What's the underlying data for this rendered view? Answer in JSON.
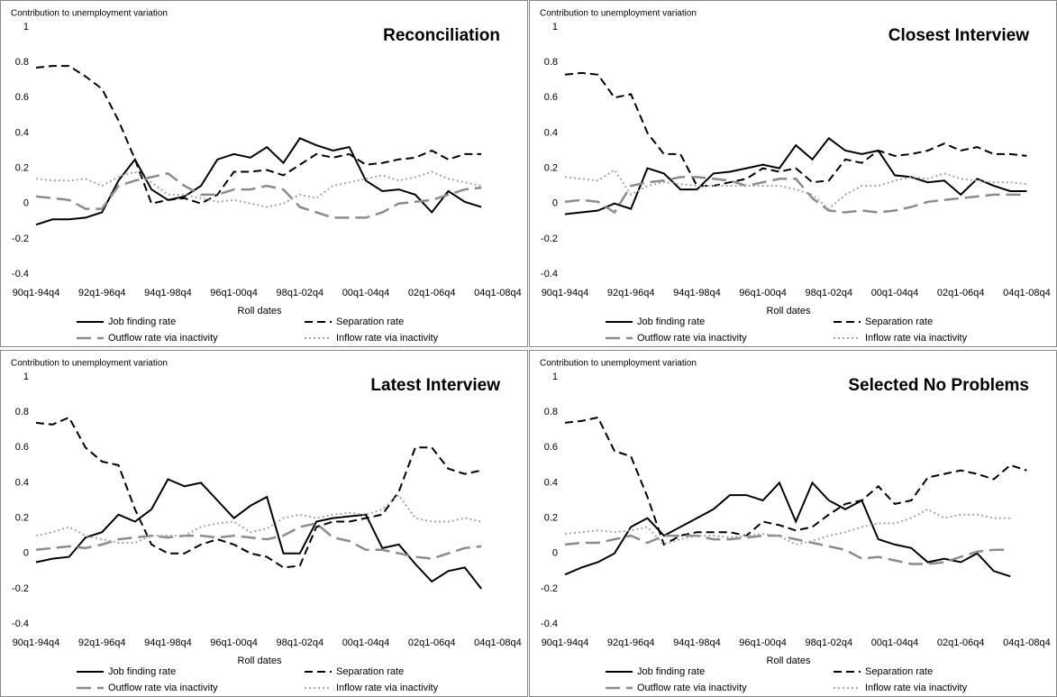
{
  "chart_data": [
    {
      "type": "line",
      "title": "Reconciliation",
      "y_axis_title": "Contribution to unemployment variation",
      "x_axis_title": "Roll dates",
      "categories": [
        "90q1-94q4",
        null,
        null,
        null,
        "92q1-96q4",
        null,
        null,
        null,
        "94q1-98q4",
        null,
        null,
        null,
        "96q1-00q4",
        null,
        null,
        null,
        "98q1-02q4",
        null,
        null,
        null,
        "00q1-04q4",
        null,
        null,
        null,
        "02q1-06q4",
        null,
        null,
        null,
        "04q1-08q4"
      ],
      "ylim": [
        -0.4,
        1
      ],
      "yticks": [
        -0.4,
        -0.2,
        0,
        0.2,
        0.4,
        0.6,
        0.8,
        1
      ],
      "series": [
        {
          "name": "Job finding rate",
          "color": "#000000",
          "dash": "solid",
          "values": [
            -0.12,
            -0.09,
            -0.09,
            -0.08,
            -0.05,
            0.13,
            0.25,
            0.08,
            0.02,
            0.04,
            0.1,
            0.25,
            0.28,
            0.26,
            0.32,
            0.23,
            0.37,
            0.33,
            0.3,
            0.32,
            0.13,
            0.07,
            0.08,
            0.05,
            -0.05,
            0.07,
            0.01,
            -0.02,
            null
          ]
        },
        {
          "name": "Separation rate",
          "color": "#000000",
          "dash": "dashed",
          "values": [
            0.77,
            0.78,
            0.78,
            0.72,
            0.65,
            0.47,
            0.25,
            0.0,
            0.02,
            0.03,
            0.0,
            0.05,
            0.18,
            0.18,
            0.19,
            0.16,
            0.22,
            0.28,
            0.26,
            0.28,
            0.22,
            0.23,
            0.25,
            0.26,
            0.3,
            0.25,
            0.28,
            0.28,
            null
          ]
        },
        {
          "name": "Outflow rate via inactivity",
          "color": "#8c8c8c",
          "dash": "long-dashed",
          "values": [
            0.04,
            0.03,
            0.02,
            -0.03,
            -0.03,
            0.1,
            0.13,
            0.15,
            0.17,
            0.1,
            0.05,
            0.05,
            0.08,
            0.08,
            0.1,
            0.08,
            -0.02,
            -0.05,
            -0.08,
            -0.08,
            -0.08,
            -0.05,
            0.0,
            0.01,
            0.02,
            0.05,
            0.08,
            0.09,
            null
          ]
        },
        {
          "name": "Inflow rate via inactivity",
          "color": "#a6a6a6",
          "dash": "dotted",
          "values": [
            0.14,
            0.13,
            0.13,
            0.14,
            0.1,
            0.15,
            0.18,
            0.12,
            0.05,
            0.05,
            0.03,
            0.01,
            0.02,
            0.0,
            -0.02,
            0.0,
            0.05,
            0.03,
            0.1,
            0.12,
            0.14,
            0.16,
            0.13,
            0.15,
            0.18,
            0.14,
            0.12,
            0.1,
            null
          ]
        }
      ]
    },
    {
      "type": "line",
      "title": "Closest Interview",
      "y_axis_title": "Contribution to unemployment variation",
      "x_axis_title": "Roll dates",
      "categories": [
        "90q1-94q4",
        null,
        null,
        null,
        "92q1-96q4",
        null,
        null,
        null,
        "94q1-98q4",
        null,
        null,
        null,
        "96q1-00q4",
        null,
        null,
        null,
        "98q1-02q4",
        null,
        null,
        null,
        "00q1-04q4",
        null,
        null,
        null,
        "02q1-06q4",
        null,
        null,
        null,
        "04q1-08q4"
      ],
      "ylim": [
        -0.4,
        1
      ],
      "yticks": [
        -0.4,
        -0.2,
        0,
        0.2,
        0.4,
        0.6,
        0.8,
        1
      ],
      "series": [
        {
          "name": "Job finding rate",
          "color": "#000000",
          "dash": "solid",
          "values": [
            -0.06,
            -0.05,
            -0.04,
            0.0,
            -0.03,
            0.2,
            0.17,
            0.08,
            0.08,
            0.17,
            0.18,
            0.2,
            0.22,
            0.2,
            0.33,
            0.25,
            0.37,
            0.3,
            0.28,
            0.3,
            0.16,
            0.15,
            0.12,
            0.13,
            0.05,
            0.14,
            0.1,
            0.07,
            0.07
          ]
        },
        {
          "name": "Separation rate",
          "color": "#000000",
          "dash": "dashed",
          "values": [
            0.73,
            0.74,
            0.73,
            0.6,
            0.62,
            0.4,
            0.28,
            0.28,
            0.1,
            0.1,
            0.12,
            0.14,
            0.2,
            0.18,
            0.2,
            0.12,
            0.13,
            0.25,
            0.23,
            0.3,
            0.27,
            0.28,
            0.3,
            0.34,
            0.3,
            0.32,
            0.28,
            0.28,
            0.27
          ]
        },
        {
          "name": "Outflow rate via inactivity",
          "color": "#8c8c8c",
          "dash": "long-dashed",
          "values": [
            0.01,
            0.02,
            0.01,
            -0.05,
            0.1,
            0.12,
            0.13,
            0.15,
            0.15,
            0.14,
            0.13,
            0.1,
            0.12,
            0.14,
            0.14,
            0.03,
            -0.04,
            -0.05,
            -0.04,
            -0.05,
            -0.04,
            -0.02,
            0.01,
            0.02,
            0.03,
            0.04,
            0.05,
            0.05,
            0.05
          ]
        },
        {
          "name": "Inflow rate via inactivity",
          "color": "#a6a6a6",
          "dash": "dotted",
          "values": [
            0.15,
            0.14,
            0.13,
            0.19,
            0.05,
            0.1,
            0.12,
            0.11,
            0.1,
            0.1,
            0.1,
            0.1,
            0.1,
            0.1,
            0.08,
            0.05,
            -0.03,
            0.05,
            0.1,
            0.1,
            0.13,
            0.15,
            0.14,
            0.17,
            0.14,
            0.13,
            0.12,
            0.12,
            0.11
          ]
        }
      ]
    },
    {
      "type": "line",
      "title": "Latest Interview",
      "y_axis_title": "Contribution to unemployment variation",
      "x_axis_title": "Roll dates",
      "categories": [
        "90q1-94q4",
        null,
        null,
        null,
        "92q1-96q4",
        null,
        null,
        null,
        "94q1-98q4",
        null,
        null,
        null,
        "96q1-00q4",
        null,
        null,
        null,
        "98q1-02q4",
        null,
        null,
        null,
        "00q1-04q4",
        null,
        null,
        null,
        "02q1-06q4",
        null,
        null,
        null,
        "04q1-08q4"
      ],
      "ylim": [
        -0.4,
        1
      ],
      "yticks": [
        -0.4,
        -0.2,
        0,
        0.2,
        0.4,
        0.6,
        0.8,
        1
      ],
      "series": [
        {
          "name": "Job finding rate",
          "color": "#000000",
          "dash": "solid",
          "values": [
            -0.05,
            -0.03,
            -0.02,
            0.09,
            0.12,
            0.22,
            0.18,
            0.25,
            0.42,
            0.38,
            0.4,
            0.3,
            0.2,
            0.27,
            0.32,
            0.0,
            0.0,
            0.18,
            0.2,
            0.21,
            0.22,
            0.03,
            0.05,
            -0.06,
            -0.16,
            -0.1,
            -0.08,
            -0.2,
            null
          ]
        },
        {
          "name": "Separation rate",
          "color": "#000000",
          "dash": "dashed",
          "values": [
            0.74,
            0.73,
            0.77,
            0.6,
            0.52,
            0.5,
            0.25,
            0.05,
            0.0,
            0.0,
            0.05,
            0.08,
            0.05,
            0.0,
            -0.02,
            -0.08,
            -0.07,
            0.15,
            0.18,
            0.18,
            0.2,
            0.22,
            0.35,
            0.6,
            0.6,
            0.48,
            0.45,
            0.47,
            null
          ]
        },
        {
          "name": "Outflow rate via inactivity",
          "color": "#8c8c8c",
          "dash": "long-dashed",
          "values": [
            0.02,
            0.03,
            0.04,
            0.03,
            0.05,
            0.08,
            0.09,
            0.1,
            0.09,
            0.1,
            0.1,
            0.09,
            0.1,
            0.09,
            0.08,
            0.1,
            0.15,
            0.17,
            0.09,
            0.07,
            0.02,
            0.02,
            0.0,
            -0.02,
            -0.03,
            0.0,
            0.03,
            0.04,
            null
          ]
        },
        {
          "name": "Inflow rate via inactivity",
          "color": "#a6a6a6",
          "dash": "dotted",
          "values": [
            0.1,
            0.12,
            0.15,
            0.1,
            0.08,
            0.06,
            0.06,
            0.1,
            0.1,
            0.1,
            0.15,
            0.17,
            0.18,
            0.12,
            0.14,
            0.2,
            0.22,
            0.2,
            0.22,
            0.23,
            0.22,
            0.25,
            0.33,
            0.2,
            0.18,
            0.18,
            0.2,
            0.18,
            null
          ]
        }
      ]
    },
    {
      "type": "line",
      "title": "Selected No Problems",
      "y_axis_title": "Contribution to unemployment variation",
      "x_axis_title": "Roll dates",
      "categories": [
        "90q1-94q4",
        null,
        null,
        null,
        "92q1-96q4",
        null,
        null,
        null,
        "94q1-98q4",
        null,
        null,
        null,
        "96q1-00q4",
        null,
        null,
        null,
        "98q1-02q4",
        null,
        null,
        null,
        "00q1-04q4",
        null,
        null,
        null,
        "02q1-06q4",
        null,
        null,
        null,
        "04q1-08q4"
      ],
      "ylim": [
        -0.4,
        1
      ],
      "yticks": [
        -0.4,
        -0.2,
        0,
        0.2,
        0.4,
        0.6,
        0.8,
        1
      ],
      "series": [
        {
          "name": "Job finding rate",
          "color": "#000000",
          "dash": "solid",
          "values": [
            -0.12,
            -0.08,
            -0.05,
            0.0,
            0.15,
            0.2,
            0.1,
            0.15,
            0.2,
            0.25,
            0.33,
            0.33,
            0.3,
            0.4,
            0.18,
            0.4,
            0.3,
            0.25,
            0.3,
            0.08,
            0.05,
            0.03,
            -0.05,
            -0.03,
            -0.05,
            0.0,
            -0.1,
            -0.13,
            null
          ]
        },
        {
          "name": "Separation rate",
          "color": "#000000",
          "dash": "dashed",
          "values": [
            0.74,
            0.75,
            0.77,
            0.58,
            0.55,
            0.32,
            0.05,
            0.1,
            0.12,
            0.12,
            0.12,
            0.1,
            0.18,
            0.16,
            0.13,
            0.15,
            0.22,
            0.28,
            0.3,
            0.38,
            0.28,
            0.3,
            0.43,
            0.45,
            0.47,
            0.45,
            0.42,
            0.5,
            0.47
          ]
        },
        {
          "name": "Outflow rate via inactivity",
          "color": "#8c8c8c",
          "dash": "long-dashed",
          "values": [
            0.05,
            0.06,
            0.06,
            0.08,
            0.1,
            0.06,
            0.1,
            0.1,
            0.1,
            0.08,
            0.08,
            0.09,
            0.1,
            0.1,
            0.08,
            0.06,
            0.04,
            0.02,
            -0.03,
            -0.02,
            -0.04,
            -0.06,
            -0.06,
            -0.05,
            -0.02,
            0.01,
            0.02,
            0.02,
            null
          ]
        },
        {
          "name": "Inflow rate via inactivity",
          "color": "#a6a6a6",
          "dash": "dotted",
          "values": [
            0.11,
            0.12,
            0.13,
            0.12,
            0.13,
            0.15,
            0.05,
            0.08,
            0.1,
            0.1,
            0.09,
            0.1,
            0.11,
            0.1,
            0.05,
            0.07,
            0.1,
            0.12,
            0.15,
            0.17,
            0.17,
            0.2,
            0.25,
            0.2,
            0.22,
            0.22,
            0.2,
            0.2,
            null
          ]
        }
      ]
    }
  ]
}
